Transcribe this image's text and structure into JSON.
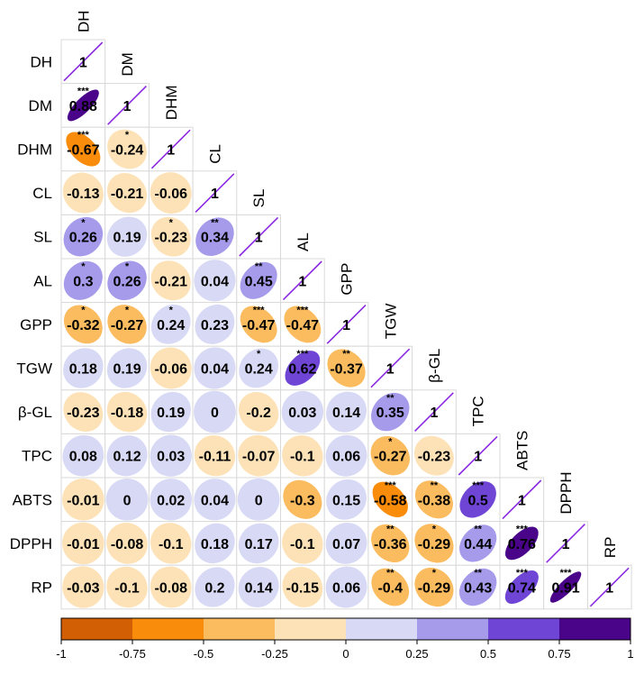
{
  "chart_data": {
    "type": "heatmap",
    "variables": [
      "DH",
      "DM",
      "DHM",
      "CL",
      "SL",
      "AL",
      "GPP",
      "TGW",
      "β-GL",
      "TPC",
      "ABTS",
      "DPPH",
      "RP"
    ],
    "values": [
      [
        "1"
      ],
      [
        "0.88",
        "1"
      ],
      [
        "-0.67",
        "-0.24",
        "1"
      ],
      [
        "-0.13",
        "-0.21",
        "-0.06",
        "1"
      ],
      [
        "0.26",
        "0.19",
        "-0.23",
        "0.34",
        "1"
      ],
      [
        "0.3",
        "0.26",
        "-0.21",
        "0.04",
        "0.45",
        "1"
      ],
      [
        "-0.32",
        "-0.27",
        "0.24",
        "0.23",
        "-0.47",
        "-0.47",
        "1"
      ],
      [
        "0.18",
        "0.19",
        "-0.06",
        "0.04",
        "0.24",
        "0.62",
        "-0.37",
        "1"
      ],
      [
        "-0.23",
        "-0.18",
        "0.19",
        "0",
        "-0.2",
        "0.03",
        "0.14",
        "0.35",
        "1"
      ],
      [
        "0.08",
        "0.12",
        "0.03",
        "-0.11",
        "-0.07",
        "-0.1",
        "0.06",
        "-0.27",
        "-0.23",
        "1"
      ],
      [
        "-0.01",
        "0",
        "0.02",
        "0.04",
        "0",
        "-0.3",
        "0.15",
        "-0.58",
        "-0.38",
        "0.5",
        "1"
      ],
      [
        "-0.01",
        "-0.08",
        "-0.1",
        "0.18",
        "0.17",
        "-0.1",
        "0.07",
        "-0.36",
        "-0.29",
        "0.44",
        "0.76",
        "1"
      ],
      [
        "-0.03",
        "-0.1",
        "-0.08",
        "0.2",
        "0.14",
        "-0.15",
        "0.06",
        "-0.4",
        "-0.29",
        "0.43",
        "0.74",
        "0.91",
        "1"
      ]
    ],
    "significance": [
      [
        ""
      ],
      [
        "***",
        ""
      ],
      [
        "***",
        "*",
        ""
      ],
      [
        "",
        "",
        "",
        ""
      ],
      [
        "*",
        "",
        "*",
        "**",
        ""
      ],
      [
        "*",
        "*",
        "",
        "",
        "**",
        ""
      ],
      [
        "*",
        "*",
        "*",
        "",
        "***",
        "***",
        ""
      ],
      [
        "",
        "",
        "",
        "",
        "*",
        "***",
        "**",
        ""
      ],
      [
        "",
        "",
        "",
        "",
        "",
        "",
        "",
        "**",
        ""
      ],
      [
        "",
        "",
        "",
        "",
        "",
        "",
        "",
        "*",
        "",
        ""
      ],
      [
        "",
        "",
        "",
        "",
        "",
        "",
        "",
        "***",
        "**",
        "***",
        ""
      ],
      [
        "",
        "",
        "",
        "",
        "",
        "",
        "",
        "**",
        "*",
        "**",
        "***",
        ""
      ],
      [
        "",
        "",
        "",
        "",
        "",
        "",
        "",
        "**",
        "*",
        "**",
        "***",
        "***",
        ""
      ]
    ],
    "colorbar": {
      "ticks": [
        "-1",
        "-0.75",
        "-0.5",
        "-0.25",
        "0",
        "0.25",
        "0.5",
        "0.75",
        "1"
      ],
      "colors": [
        "#d35f04",
        "#f98c0a",
        "#fbbb5f",
        "#fde2b8",
        "#d8daf5",
        "#a69bea",
        "#6f45d5",
        "#4a048a"
      ],
      "range": [
        -1,
        1
      ]
    },
    "diagonal_line_color": "#8a2be2",
    "legend_position": "bottom"
  }
}
